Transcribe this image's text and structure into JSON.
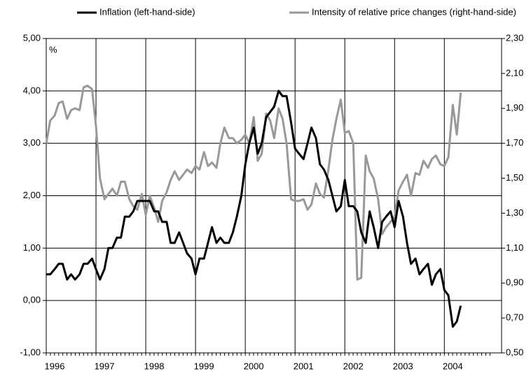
{
  "chart_data": {
    "type": "line",
    "annotations": [
      "%"
    ],
    "x": [
      1996.0,
      1996.08,
      1996.17,
      1996.25,
      1996.33,
      1996.42,
      1996.5,
      1996.58,
      1996.67,
      1996.75,
      1996.83,
      1996.92,
      1997.0,
      1997.08,
      1997.17,
      1997.25,
      1997.33,
      1997.42,
      1997.5,
      1997.58,
      1997.67,
      1997.75,
      1997.83,
      1997.92,
      1998.0,
      1998.08,
      1998.17,
      1998.25,
      1998.33,
      1998.42,
      1998.5,
      1998.58,
      1998.67,
      1998.75,
      1998.83,
      1998.92,
      1999.0,
      1999.08,
      1999.17,
      1999.25,
      1999.33,
      1999.42,
      1999.5,
      1999.58,
      1999.67,
      1999.75,
      1999.83,
      1999.92,
      2000.0,
      2000.08,
      2000.17,
      2000.25,
      2000.33,
      2000.42,
      2000.5,
      2000.58,
      2000.67,
      2000.75,
      2000.83,
      2000.92,
      2001.0,
      2001.08,
      2001.17,
      2001.25,
      2001.33,
      2001.42,
      2001.5,
      2001.58,
      2001.67,
      2001.75,
      2001.83,
      2001.92,
      2002.0,
      2002.08,
      2002.17,
      2002.25,
      2002.33,
      2002.42,
      2002.5,
      2002.58,
      2002.67,
      2002.75,
      2002.83,
      2002.92,
      2003.0,
      2003.08,
      2003.17,
      2003.25,
      2003.33,
      2003.42,
      2003.5,
      2003.58,
      2003.67,
      2003.75,
      2003.83,
      2003.92,
      2004.0,
      2004.08,
      2004.17,
      2004.25,
      2004.33
    ],
    "series": [
      {
        "name": "Inflation (left-hand-side)",
        "color": "#000000",
        "axis": "y",
        "values": [
          0.5,
          0.5,
          0.6,
          0.7,
          0.7,
          0.4,
          0.5,
          0.4,
          0.5,
          0.7,
          0.7,
          0.8,
          0.6,
          0.4,
          0.6,
          1.0,
          1.0,
          1.2,
          1.2,
          1.6,
          1.6,
          1.7,
          1.9,
          1.9,
          1.9,
          1.9,
          1.7,
          1.7,
          1.5,
          1.5,
          1.1,
          1.1,
          1.3,
          1.1,
          0.9,
          0.8,
          0.5,
          0.8,
          0.8,
          1.1,
          1.4,
          1.1,
          1.2,
          1.1,
          1.1,
          1.3,
          1.6,
          2.0,
          2.6,
          3.0,
          3.3,
          2.8,
          3.0,
          3.5,
          3.6,
          3.7,
          4.0,
          3.9,
          3.9,
          3.4,
          2.9,
          2.8,
          2.7,
          3.0,
          3.3,
          3.1,
          2.6,
          2.5,
          2.3,
          2.0,
          1.7,
          1.8,
          2.3,
          1.8,
          1.8,
          1.7,
          1.3,
          1.1,
          1.7,
          1.4,
          1.0,
          1.5,
          1.6,
          1.7,
          1.4,
          1.9,
          1.6,
          1.1,
          0.7,
          0.8,
          0.5,
          0.6,
          0.7,
          0.3,
          0.5,
          0.6,
          0.2,
          0.1,
          -0.5,
          -0.4,
          -0.1
        ]
      },
      {
        "name": "Intensity of relative price changes (right-hand-side)",
        "color": "#999999",
        "axis": "y2",
        "values": [
          1.7,
          1.83,
          1.86,
          1.93,
          1.94,
          1.84,
          1.89,
          1.9,
          1.89,
          2.02,
          2.03,
          2.01,
          1.8,
          1.5,
          1.38,
          1.41,
          1.44,
          1.4,
          1.48,
          1.48,
          1.38,
          1.34,
          1.32,
          1.41,
          1.29,
          1.4,
          1.33,
          1.25,
          1.37,
          1.42,
          1.49,
          1.54,
          1.49,
          1.52,
          1.55,
          1.53,
          1.57,
          1.55,
          1.65,
          1.57,
          1.59,
          1.56,
          1.7,
          1.79,
          1.73,
          1.73,
          1.7,
          1.72,
          1.75,
          1.7,
          1.85,
          1.6,
          1.64,
          1.87,
          1.83,
          1.73,
          1.9,
          1.84,
          1.7,
          1.38,
          1.37,
          1.37,
          1.38,
          1.32,
          1.35,
          1.47,
          1.41,
          1.39,
          1.55,
          1.72,
          1.84,
          1.95,
          1.76,
          1.77,
          1.7,
          0.92,
          0.93,
          1.63,
          1.54,
          1.5,
          1.38,
          1.18,
          1.22,
          1.25,
          1.28,
          1.43,
          1.48,
          1.52,
          1.4,
          1.53,
          1.52,
          1.6,
          1.56,
          1.61,
          1.63,
          1.58,
          1.57,
          1.62,
          1.92,
          1.75,
          1.99
        ]
      }
    ],
    "xlim": [
      1996,
      2005.15
    ],
    "xticks": [
      1996,
      1997,
      1998,
      1999,
      2000,
      2001,
      2002,
      2003,
      2004
    ],
    "ylim": [
      -1,
      5
    ],
    "yticks": [
      {
        "value": -1,
        "label": "-1,00"
      },
      {
        "value": 0,
        "label": "0,00"
      },
      {
        "value": 1,
        "label": "1,00"
      },
      {
        "value": 2,
        "label": "2,00"
      },
      {
        "value": 3,
        "label": "3,00"
      },
      {
        "value": 4,
        "label": "4,00"
      },
      {
        "value": 5,
        "label": "5,00"
      }
    ],
    "y2lim": [
      0.5,
      2.3
    ],
    "y2ticks": [
      {
        "value": 0.5,
        "label": "0,50"
      },
      {
        "value": 0.7,
        "label": "0,70"
      },
      {
        "value": 0.9,
        "label": "0,90"
      },
      {
        "value": 1.1,
        "label": "1,10"
      },
      {
        "value": 1.3,
        "label": "1,30"
      },
      {
        "value": 1.5,
        "label": "1,50"
      },
      {
        "value": 1.7,
        "label": "1,70"
      },
      {
        "value": 1.9,
        "label": "1,90"
      },
      {
        "value": 2.1,
        "label": "2,10"
      },
      {
        "value": 2.3,
        "label": "2,30"
      }
    ],
    "grid": true,
    "legend": "top"
  }
}
